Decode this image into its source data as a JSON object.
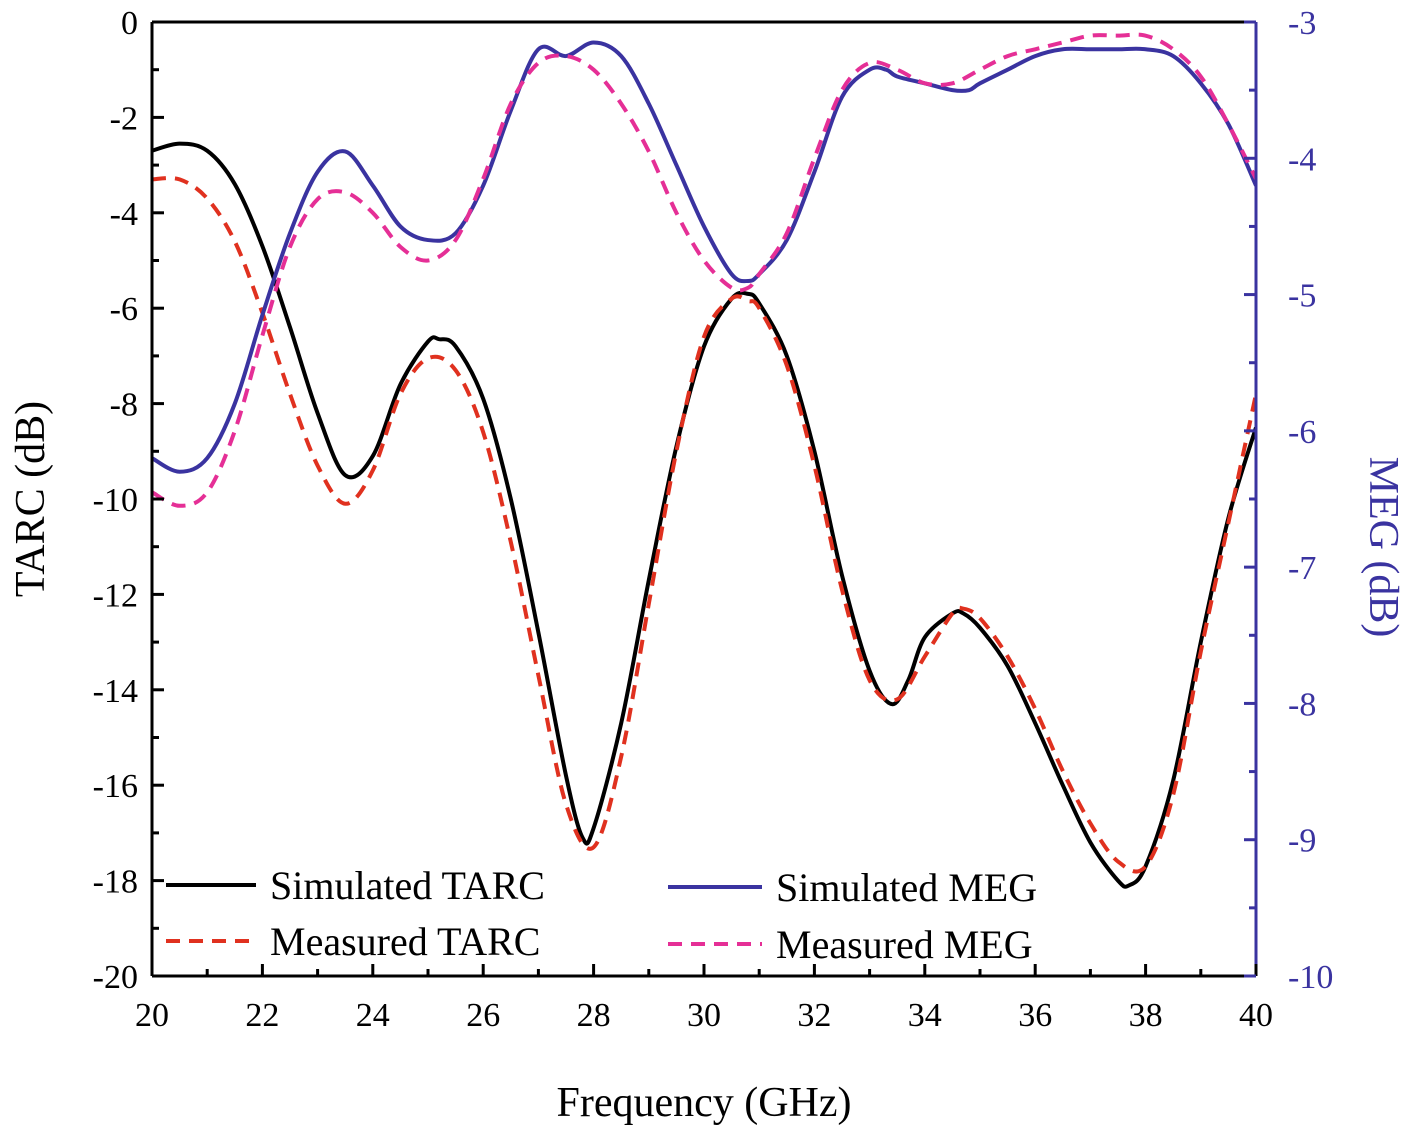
{
  "chart_data": {
    "type": "line",
    "title": "",
    "xlabel": "Frequency (GHz)",
    "ylabel": "TARC (dB)",
    "y2label": "MEG (dB)",
    "xlim": [
      20,
      40
    ],
    "ylim": [
      -20,
      0
    ],
    "y2lim": [
      -10,
      -3
    ],
    "xticks": [
      20,
      22,
      24,
      26,
      28,
      30,
      32,
      34,
      36,
      38,
      40
    ],
    "yticks": [
      0,
      -2,
      -4,
      -6,
      -8,
      -10,
      -12,
      -14,
      -16,
      -18,
      -20
    ],
    "y2ticks": [
      -3,
      -4,
      -5,
      -6,
      -7,
      -8,
      -9,
      -10
    ],
    "grid": false,
    "legend_position": "bottom-left",
    "series": [
      {
        "name": "Simulated TARC",
        "axis": "left",
        "color": "#000000",
        "dash": "solid",
        "x": [
          20,
          20.5,
          21,
          21.5,
          22,
          22.5,
          23,
          23.5,
          24,
          24.5,
          25,
          25.2,
          25.5,
          26,
          26.5,
          27,
          27.5,
          27.8,
          28,
          28.5,
          29,
          29.5,
          30,
          30.5,
          30.8,
          31,
          31.5,
          32,
          32.5,
          33,
          33.4,
          33.7,
          34,
          34.5,
          34.7,
          35,
          35.5,
          36,
          36.5,
          37,
          37.5,
          37.7,
          38,
          38.5,
          39,
          39.5,
          40
        ],
        "y": [
          -2.7,
          -2.55,
          -2.7,
          -3.4,
          -4.7,
          -6.4,
          -8.2,
          -9.5,
          -9.1,
          -7.6,
          -6.7,
          -6.65,
          -6.8,
          -7.9,
          -10.0,
          -12.8,
          -15.8,
          -17.1,
          -16.9,
          -14.7,
          -11.7,
          -8.9,
          -6.8,
          -5.8,
          -5.7,
          -5.9,
          -7.0,
          -9.0,
          -11.6,
          -13.6,
          -14.3,
          -13.8,
          -12.9,
          -12.4,
          -12.4,
          -12.7,
          -13.5,
          -14.7,
          -16.0,
          -17.2,
          -18.0,
          -18.1,
          -17.7,
          -15.9,
          -13.0,
          -10.4,
          -8.5
        ]
      },
      {
        "name": "Measured TARC",
        "axis": "left",
        "color": "#e0311f",
        "dash": "dashed",
        "x": [
          20,
          20.5,
          21,
          21.5,
          22,
          22.5,
          23,
          23.5,
          24,
          24.5,
          25,
          25.5,
          26,
          26.5,
          27,
          27.5,
          28,
          28.5,
          29,
          29.5,
          30,
          30.5,
          30.8,
          31,
          31.5,
          32,
          32.5,
          33,
          33.5,
          34,
          34.5,
          34.7,
          35,
          35.5,
          36,
          36.5,
          37,
          37.5,
          38,
          38.5,
          39,
          39.5,
          40
        ],
        "y": [
          -3.3,
          -3.3,
          -3.7,
          -4.6,
          -6.1,
          -7.8,
          -9.3,
          -10.1,
          -9.4,
          -7.8,
          -7.05,
          -7.3,
          -8.6,
          -10.9,
          -13.7,
          -16.4,
          -17.3,
          -15.4,
          -12.2,
          -9.0,
          -6.6,
          -5.8,
          -5.85,
          -6.0,
          -7.2,
          -9.3,
          -11.9,
          -13.8,
          -14.2,
          -13.3,
          -12.4,
          -12.3,
          -12.5,
          -13.3,
          -14.4,
          -15.7,
          -16.8,
          -17.6,
          -17.7,
          -16.2,
          -13.2,
          -10.5,
          -7.8
        ]
      },
      {
        "name": "Simulated MEG",
        "axis": "right",
        "color": "#3a33a0",
        "dash": "solid",
        "x": [
          20,
          20.5,
          21,
          21.5,
          22,
          22.5,
          23,
          23.5,
          24,
          24.5,
          25,
          25.5,
          26,
          26.5,
          27,
          27.5,
          28,
          28.5,
          29,
          29.5,
          30,
          30.5,
          30.8,
          31,
          31.5,
          32,
          32.5,
          33,
          33.3,
          33.5,
          34,
          34.5,
          34.8,
          35,
          35.5,
          36,
          36.5,
          37,
          37.5,
          38,
          38.5,
          39,
          39.5,
          40
        ],
        "y": [
          -6.2,
          -6.3,
          -6.2,
          -5.8,
          -5.15,
          -4.55,
          -4.1,
          -3.95,
          -4.2,
          -4.5,
          -4.6,
          -4.55,
          -4.2,
          -3.65,
          -3.2,
          -3.25,
          -3.15,
          -3.25,
          -3.6,
          -4.05,
          -4.5,
          -4.85,
          -4.9,
          -4.85,
          -4.6,
          -4.1,
          -3.55,
          -3.35,
          -3.35,
          -3.4,
          -3.45,
          -3.5,
          -3.5,
          -3.45,
          -3.35,
          -3.25,
          -3.2,
          -3.2,
          -3.2,
          -3.2,
          -3.25,
          -3.45,
          -3.75,
          -4.2
        ]
      },
      {
        "name": "Measured MEG",
        "axis": "right",
        "color": "#e52f96",
        "dash": "dashed",
        "x": [
          20,
          20.5,
          21,
          21.5,
          22,
          22.5,
          23,
          23.5,
          24,
          24.5,
          25,
          25.5,
          26,
          26.5,
          27,
          27.5,
          28,
          28.5,
          29,
          29.5,
          30,
          30.5,
          30.8,
          31,
          31.5,
          32,
          32.5,
          33,
          33.5,
          34,
          34.5,
          35,
          35.5,
          36,
          36.5,
          37,
          37.5,
          38,
          38.5,
          39,
          39.5,
          40
        ],
        "y": [
          -6.45,
          -6.55,
          -6.45,
          -6.0,
          -5.3,
          -4.65,
          -4.3,
          -4.25,
          -4.4,
          -4.65,
          -4.75,
          -4.6,
          -4.15,
          -3.6,
          -3.3,
          -3.25,
          -3.35,
          -3.6,
          -3.95,
          -4.4,
          -4.75,
          -4.95,
          -4.95,
          -4.85,
          -4.55,
          -4.0,
          -3.5,
          -3.3,
          -3.35,
          -3.45,
          -3.45,
          -3.35,
          -3.25,
          -3.2,
          -3.15,
          -3.1,
          -3.1,
          -3.1,
          -3.2,
          -3.4,
          -3.75,
          -4.15
        ]
      }
    ]
  }
}
